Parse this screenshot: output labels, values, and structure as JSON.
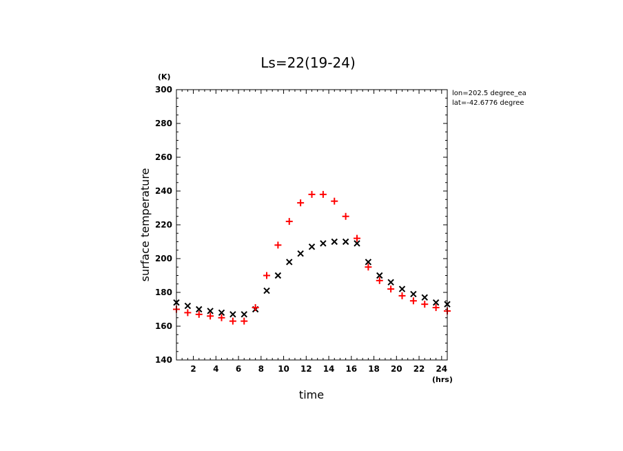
{
  "chart_data": {
    "type": "scatter",
    "title": "Ls=22(19-24)",
    "xlabel": "time",
    "ylabel": "surface temperature",
    "x_unit": "(hrs)",
    "y_unit": "(K)",
    "xlim": [
      0.5,
      24.5
    ],
    "ylim": [
      140,
      300
    ],
    "x_ticks": [
      2,
      4,
      6,
      8,
      10,
      12,
      14,
      16,
      18,
      20,
      22,
      24
    ],
    "y_ticks": [
      140,
      160,
      180,
      200,
      220,
      240,
      260,
      280,
      300
    ],
    "annotations": [
      "lon=202.5 degree_ea",
      "lat=-42.6776 degree"
    ],
    "x": [
      0.5,
      1.5,
      2.5,
      3.5,
      4.5,
      5.5,
      6.5,
      7.5,
      8.5,
      9.5,
      10.5,
      11.5,
      12.5,
      13.5,
      14.5,
      15.5,
      16.5,
      17.5,
      18.5,
      19.5,
      20.5,
      21.5,
      22.5,
      23.5,
      24.5
    ],
    "series": [
      {
        "name": "series-black-x",
        "marker": "x",
        "color": "#000000",
        "values": [
          174,
          172,
          170,
          169,
          168,
          167,
          167,
          170,
          181,
          190,
          198,
          203,
          207,
          209,
          210,
          210,
          209,
          198,
          190,
          186,
          182,
          179,
          177,
          174,
          173
        ]
      },
      {
        "name": "series-red-plus",
        "marker": "+",
        "color": "#ff0000",
        "values": [
          170,
          168,
          167,
          166,
          165,
          163,
          163,
          171,
          190,
          208,
          222,
          233,
          238,
          238,
          234,
          225,
          212,
          195,
          187,
          182,
          178,
          175,
          173,
          171,
          169
        ]
      }
    ]
  }
}
